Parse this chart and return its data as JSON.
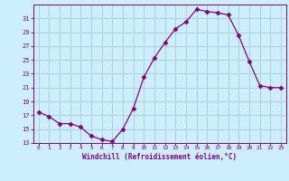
{
  "x": [
    0,
    1,
    2,
    3,
    4,
    5,
    6,
    7,
    8,
    9,
    10,
    11,
    12,
    13,
    14,
    15,
    16,
    17,
    18,
    19,
    20,
    21,
    22,
    23
  ],
  "y": [
    17.5,
    16.8,
    15.8,
    15.8,
    15.3,
    14.0,
    13.5,
    13.2,
    15.0,
    18.0,
    22.5,
    25.3,
    27.5,
    29.5,
    30.5,
    32.3,
    32.0,
    31.8,
    31.5,
    28.5,
    24.8,
    21.3,
    21.0,
    21.0
  ],
  "line_color": "#800080",
  "marker": "D",
  "marker_size": 2.5,
  "bg_color": "#cceeff",
  "grid_color": "#aacccc",
  "xlabel": "Windchill (Refroidissement éolien,°C)",
  "xlabel_color": "#800080",
  "tick_color": "#800080",
  "ylim": [
    13,
    33
  ],
  "xlim": [
    -0.5,
    23.5
  ],
  "yticks": [
    13,
    15,
    17,
    19,
    21,
    23,
    25,
    27,
    29,
    31
  ],
  "xticks": [
    0,
    1,
    2,
    3,
    4,
    5,
    6,
    7,
    8,
    9,
    10,
    11,
    12,
    13,
    14,
    15,
    16,
    17,
    18,
    19,
    20,
    21,
    22,
    23
  ]
}
